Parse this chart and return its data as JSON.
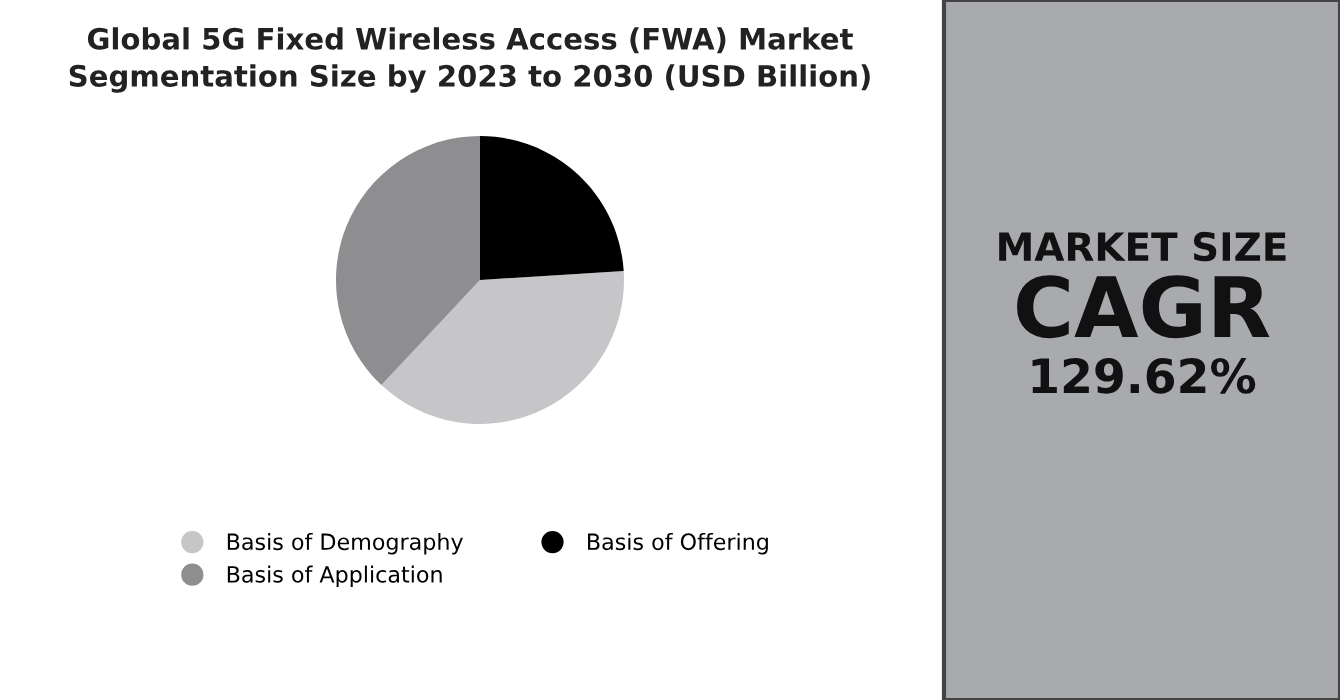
{
  "chart_data": {
    "type": "pie",
    "title": "Global 5G Fixed Wireless Access (FWA) Market\nSegmentation Size by 2023 to 2030 (USD Billion)",
    "categories": [
      "Basis of Demography",
      "Basis of Offering",
      "Basis of Application"
    ],
    "values": [
      38,
      24,
      38
    ],
    "colors": [
      "#c6c6c8",
      "#000000",
      "#8e8e90"
    ],
    "legend": "bottom",
    "annotations": [
      "MARKET SIZE",
      "CAGR",
      "129.62%"
    ]
  }
}
